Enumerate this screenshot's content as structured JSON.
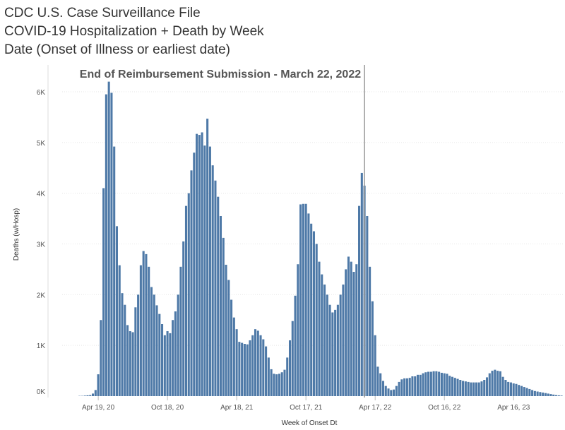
{
  "title_lines": [
    "CDC U.S. Case Surveillance File",
    "COVID-19 Hospitalization + Death by Week",
    "Date (Onset of Illness or earliest date)"
  ],
  "chart_data": {
    "type": "bar",
    "ylabel": "Deaths (w/Hosp)",
    "xlabel": "Week of Onset Dt",
    "ylim": [
      0,
      6300
    ],
    "y_ticks": [
      0,
      1000,
      2000,
      3000,
      4000,
      5000,
      6000
    ],
    "y_tick_labels": [
      "0K",
      "1K",
      "2K",
      "3K",
      "4K",
      "5K",
      "6K"
    ],
    "x_ticks": [
      {
        "label": "Apr 19, 20",
        "index": 12
      },
      {
        "label": "Oct 18, 20",
        "index": 38
      },
      {
        "label": "Apr 18, 21",
        "index": 64
      },
      {
        "label": "Oct 17, 21",
        "index": 90
      },
      {
        "label": "Apr 17, 22",
        "index": 116
      },
      {
        "label": "Oct 16, 22",
        "index": 142
      },
      {
        "label": "Apr 16, 23",
        "index": 168
      }
    ],
    "gridlines": "horizontal",
    "bar_color": "#4e79a7",
    "annotation": {
      "text": "End of Reimbursement Submission - March 22, 2022",
      "index": 112.5,
      "line_color": "#999999"
    },
    "values": [
      0,
      0,
      0,
      0,
      0,
      5,
      5,
      10,
      15,
      20,
      50,
      120,
      430,
      1500,
      4100,
      5950,
      6200,
      5980,
      4920,
      3350,
      2580,
      2030,
      1800,
      1400,
      1280,
      1260,
      1750,
      2000,
      2580,
      2860,
      2800,
      2550,
      2150,
      2000,
      1790,
      1620,
      1420,
      1200,
      1280,
      1240,
      1500,
      1670,
      2000,
      2550,
      3050,
      3750,
      4000,
      4450,
      4800,
      5170,
      5150,
      5200,
      4940,
      5470,
      4920,
      4550,
      4250,
      3930,
      3550,
      3120,
      2590,
      2290,
      1900,
      1550,
      1320,
      1070,
      1050,
      1030,
      1020,
      1100,
      1200,
      1320,
      1290,
      1200,
      1120,
      980,
      760,
      530,
      440,
      430,
      440,
      470,
      520,
      760,
      1100,
      1480,
      1980,
      2600,
      3780,
      3790,
      3790,
      3600,
      3400,
      3250,
      3000,
      2650,
      2400,
      2200,
      2000,
      1800,
      1650,
      1700,
      1800,
      2000,
      2200,
      2500,
      2750,
      2650,
      2450,
      2600,
      3750,
      4400,
      4150,
      3550,
      2550,
      1870,
      1200,
      580,
      450,
      300,
      200,
      150,
      120,
      130,
      200,
      280,
      330,
      350,
      350,
      360,
      390,
      390,
      420,
      420,
      450,
      470,
      480,
      480,
      490,
      490,
      480,
      460,
      450,
      440,
      400,
      380,
      360,
      340,
      320,
      300,
      290,
      280,
      270,
      270,
      270,
      270,
      290,
      320,
      370,
      450,
      500,
      520,
      500,
      490,
      380,
      320,
      280,
      270,
      250,
      240,
      220,
      200,
      180,
      160,
      140,
      120,
      100,
      90,
      80,
      70,
      60,
      50,
      40,
      30,
      20,
      15,
      10
    ]
  }
}
